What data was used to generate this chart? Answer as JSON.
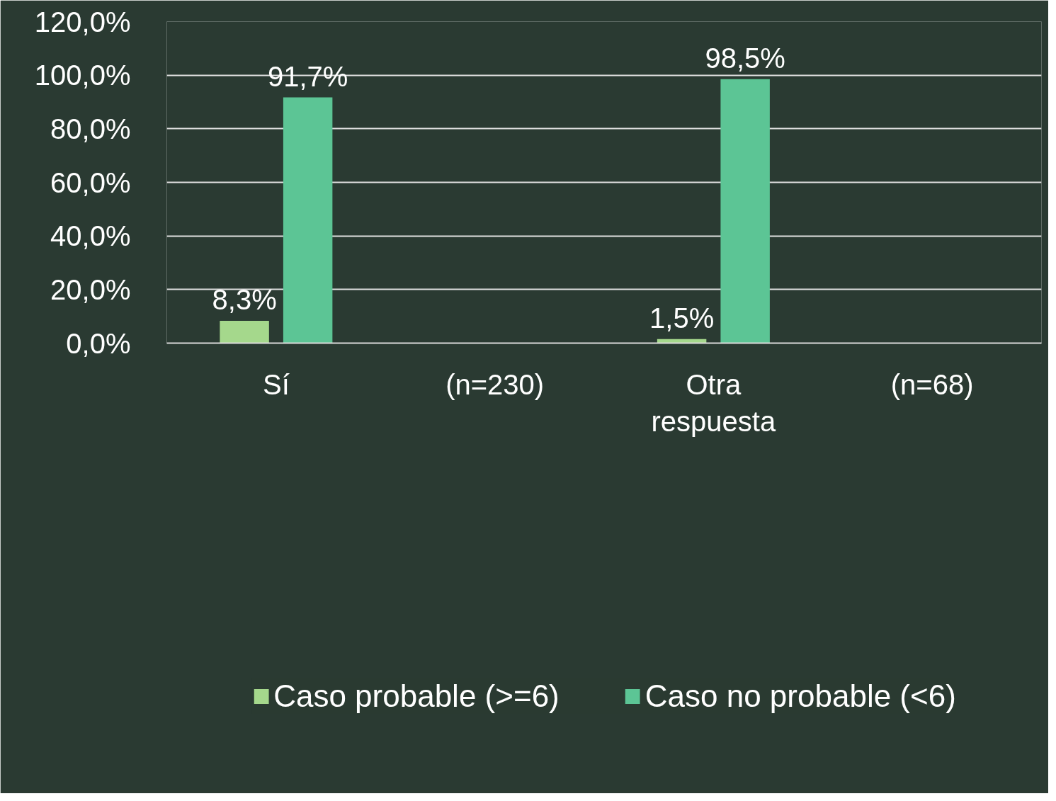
{
  "chart_data": {
    "type": "bar",
    "categories": [
      "Sí",
      "(n=230)",
      "Otra respuesta",
      "(n=68)"
    ],
    "series": [
      {
        "name": "Caso probable (>=6)",
        "color": "#a5d88c",
        "values": [
          8.3,
          null,
          1.5,
          null
        ],
        "value_labels": [
          "8,3%",
          null,
          "1,5%",
          null
        ]
      },
      {
        "name": "Caso no probable (<6)",
        "color": "#5cc595",
        "values": [
          91.7,
          null,
          98.5,
          null
        ],
        "value_labels": [
          "91,7%",
          null,
          "98,5%",
          null
        ]
      }
    ],
    "ylim": [
      0,
      120
    ],
    "yticks": [
      {
        "value": 0,
        "label": "0,0%"
      },
      {
        "value": 20,
        "label": "20,0%"
      },
      {
        "value": 40,
        "label": "40,0%"
      },
      {
        "value": 60,
        "label": "60,0%"
      },
      {
        "value": 80,
        "label": "80,0%"
      },
      {
        "value": 100,
        "label": "100,0%"
      },
      {
        "value": 120,
        "label": "120,0%"
      }
    ],
    "grid": "y",
    "legend": "bottom"
  }
}
